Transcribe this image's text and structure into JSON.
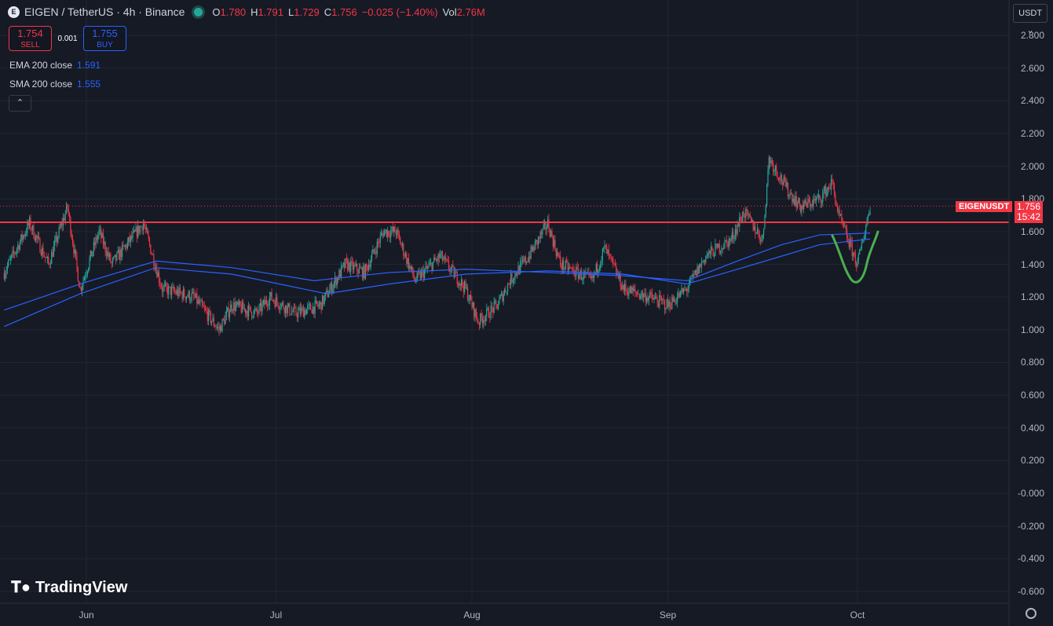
{
  "header": {
    "symbol": "EIGEN / TetherUS · 4h · Binance",
    "o_label": "O",
    "o": "1.780",
    "h_label": "H",
    "h": "1.791",
    "l_label": "L",
    "l": "1.729",
    "c_label": "C",
    "c": "1.756",
    "change": "−0.025 (−1.40%)",
    "vol_label": "Vol",
    "vol": "2.76M"
  },
  "trade": {
    "sell_price": "1.754",
    "sell_label": "SELL",
    "spread": "0.001",
    "buy_price": "1.755",
    "buy_label": "BUY"
  },
  "indicators": [
    {
      "label": "EMA 200 close",
      "value": "1.591"
    },
    {
      "label": "SMA 200 close",
      "value": "1.555"
    }
  ],
  "currency": "USDT",
  "price_tag": {
    "symbol": "EIGENUSDT",
    "price": "1.756",
    "countdown": "15:42"
  },
  "brand": "TradingView",
  "colors": {
    "bg": "#161a25",
    "up": "#26a69a",
    "down": "#f23645",
    "ma": "#2962ff",
    "resistance": "#f23645",
    "annotation": "#4caf50"
  },
  "chart_data": {
    "type": "candlestick",
    "interval": "4h",
    "y_ticks": [
      "2.800",
      "2.600",
      "2.400",
      "2.200",
      "2.000",
      "1.800",
      "1.600",
      "1.400",
      "1.200",
      "1.000",
      "0.800",
      "0.600",
      "0.400",
      "0.200",
      "-0.000",
      "-0.200",
      "-0.400",
      "-0.600"
    ],
    "ylim": [
      -0.6,
      2.8
    ],
    "x_ticks": [
      {
        "label": "Jun",
        "date": "2024-06-01"
      },
      {
        "label": "Jul",
        "date": "2024-07-01"
      },
      {
        "label": "Aug",
        "date": "2024-08-01"
      },
      {
        "label": "Sep",
        "date": "2024-09-01"
      },
      {
        "label": "Oct",
        "date": "2024-10-01"
      }
    ],
    "price_path": [
      [
        "2024-05-19",
        1.35
      ],
      [
        "2024-05-23",
        1.65
      ],
      [
        "2024-05-26",
        1.4
      ],
      [
        "2024-05-29",
        1.75
      ],
      [
        "2024-05-31",
        1.25
      ],
      [
        "2024-06-03",
        1.6
      ],
      [
        "2024-06-05",
        1.4
      ],
      [
        "2024-06-10",
        1.65
      ],
      [
        "2024-06-13",
        1.25
      ],
      [
        "2024-06-18",
        1.2
      ],
      [
        "2024-06-22",
        1.0
      ],
      [
        "2024-06-24",
        1.15
      ],
      [
        "2024-06-28",
        1.1
      ],
      [
        "2024-06-30",
        1.2
      ],
      [
        "2024-07-04",
        1.1
      ],
      [
        "2024-07-08",
        1.15
      ],
      [
        "2024-07-12",
        1.4
      ],
      [
        "2024-07-15",
        1.35
      ],
      [
        "2024-07-18",
        1.6
      ],
      [
        "2024-07-20",
        1.6
      ],
      [
        "2024-07-23",
        1.3
      ],
      [
        "2024-07-27",
        1.45
      ],
      [
        "2024-07-31",
        1.25
      ],
      [
        "2024-08-02",
        1.05
      ],
      [
        "2024-08-05",
        1.15
      ],
      [
        "2024-08-07",
        1.3
      ],
      [
        "2024-08-10",
        1.45
      ],
      [
        "2024-08-13",
        1.65
      ],
      [
        "2024-08-15",
        1.4
      ],
      [
        "2024-08-20",
        1.3
      ],
      [
        "2024-08-22",
        1.5
      ],
      [
        "2024-08-25",
        1.25
      ],
      [
        "2024-08-29",
        1.2
      ],
      [
        "2024-09-01",
        1.15
      ],
      [
        "2024-09-04",
        1.25
      ],
      [
        "2024-09-07",
        1.45
      ],
      [
        "2024-09-11",
        1.55
      ],
      [
        "2024-09-13",
        1.72
      ],
      [
        "2024-09-16",
        1.55
      ],
      [
        "2024-09-17",
        2.05
      ],
      [
        "2024-09-20",
        1.85
      ],
      [
        "2024-09-22",
        1.75
      ],
      [
        "2024-09-25",
        1.8
      ],
      [
        "2024-09-27",
        1.9
      ],
      [
        "2024-09-28",
        1.7
      ],
      [
        "2024-10-01",
        1.4
      ],
      [
        "2024-10-03",
        1.756
      ]
    ],
    "series": [
      {
        "name": "EMA 200 close",
        "values": [
          [
            "2024-05-19",
            1.12
          ],
          [
            "2024-05-31",
            1.28
          ],
          [
            "2024-06-12",
            1.42
          ],
          [
            "2024-06-24",
            1.38
          ],
          [
            "2024-07-07",
            1.3
          ],
          [
            "2024-07-19",
            1.35
          ],
          [
            "2024-07-31",
            1.37
          ],
          [
            "2024-08-13",
            1.35
          ],
          [
            "2024-08-25",
            1.33
          ],
          [
            "2024-09-04",
            1.3
          ],
          [
            "2024-09-12",
            1.42
          ],
          [
            "2024-09-19",
            1.52
          ],
          [
            "2024-09-25",
            1.58
          ],
          [
            "2024-10-03",
            1.591
          ]
        ]
      },
      {
        "name": "SMA 200 close",
        "values": [
          [
            "2024-05-19",
            1.02
          ],
          [
            "2024-05-31",
            1.22
          ],
          [
            "2024-06-12",
            1.38
          ],
          [
            "2024-06-24",
            1.34
          ],
          [
            "2024-07-09",
            1.22
          ],
          [
            "2024-07-19",
            1.28
          ],
          [
            "2024-07-31",
            1.34
          ],
          [
            "2024-08-13",
            1.36
          ],
          [
            "2024-08-25",
            1.34
          ],
          [
            "2024-09-04",
            1.28
          ],
          [
            "2024-09-12",
            1.37
          ],
          [
            "2024-09-19",
            1.45
          ],
          [
            "2024-09-25",
            1.52
          ],
          [
            "2024-10-03",
            1.555
          ]
        ]
      }
    ],
    "resistance_level": 1.657,
    "last_price": 1.756
  }
}
